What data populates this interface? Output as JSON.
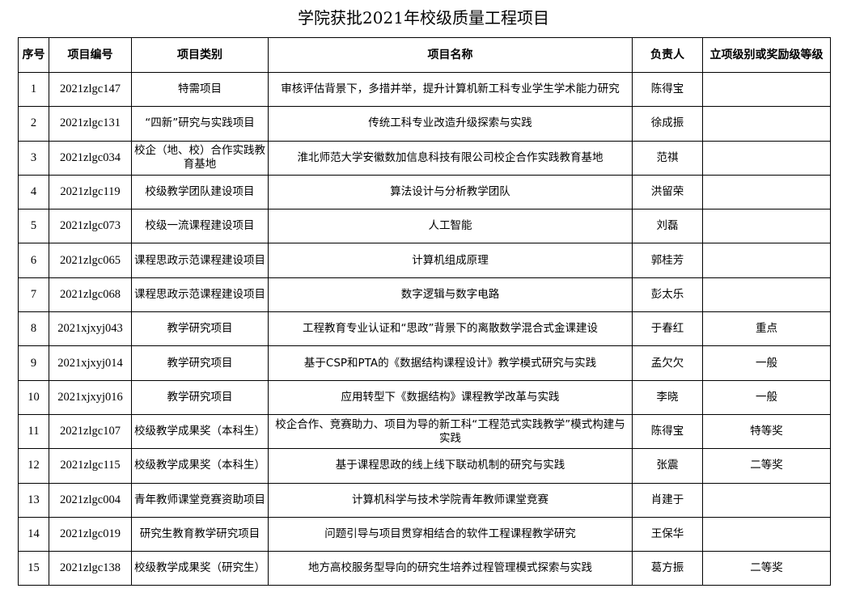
{
  "title": "学院获批2021年校级质量工程项目",
  "headers": [
    "序号",
    "项目编号",
    "项目类别",
    "项目名称",
    "负责人",
    "立项级别或奖励级等级"
  ],
  "rows": [
    [
      "1",
      "2021zlgc147",
      "特需项目",
      "审核评估背景下，多措并举，提升计算机新工科专业学生学术能力研究",
      "陈得宝",
      ""
    ],
    [
      "2",
      "2021zlgc131",
      "“四新”研究与实践项目",
      "传统工科专业改造升级探索与实践",
      "徐成振",
      ""
    ],
    [
      "3",
      "2021zlgc034",
      "校企（地、校）合作实践教育基地",
      "淮北师范大学安徽数加信息科技有限公司校企合作实践教育基地",
      "范祺",
      ""
    ],
    [
      "4",
      "2021zlgc119",
      "校级教学团队建设项目",
      "算法设计与分析教学团队",
      "洪留荣",
      ""
    ],
    [
      "5",
      "2021zlgc073",
      "校级一流课程建设项目",
      "人工智能",
      "刘磊",
      ""
    ],
    [
      "6",
      "2021zlgc065",
      "课程思政示范课程建设项目",
      "计算机组成原理",
      "郭桂芳",
      ""
    ],
    [
      "7",
      "2021zlgc068",
      "课程思政示范课程建设项目",
      "数字逻辑与数字电路",
      "彭太乐",
      ""
    ],
    [
      "8",
      "2021xjxyj043",
      "教学研究项目",
      "工程教育专业认证和“思政”背景下的离散数学混合式金课建设",
      "于春红",
      "重点"
    ],
    [
      "9",
      "2021xjxyj014",
      "教学研究项目",
      "基于CSP和PTA的《数据结构课程设计》教学模式研究与实践",
      "孟欠欠",
      "一般"
    ],
    [
      "10",
      "2021xjxyj016",
      "教学研究项目",
      "应用转型下《数据结构》课程教学改革与实践",
      "李晓",
      "一般"
    ],
    [
      "11",
      "2021zlgc107",
      "校级教学成果奖（本科生）",
      "校企合作、竞赛助力、项目为导的新工科“工程范式实践教学”模式构建与实践",
      "陈得宝",
      "特等奖"
    ],
    [
      "12",
      "2021zlgc115",
      "校级教学成果奖（本科生）",
      "基于课程思政的线上线下联动机制的研究与实践",
      "张震",
      "二等奖"
    ],
    [
      "13",
      "2021zlgc004",
      "青年教师课堂竞赛资助项目",
      "计算机科学与技术学院青年教师课堂竞赛",
      "肖建于",
      ""
    ],
    [
      "14",
      "2021zlgc019",
      "研究生教育教学研究项目",
      "问题引导与项目贯穿相结合的软件工程课程教学研究",
      "王保华",
      ""
    ],
    [
      "15",
      "2021zlgc138",
      "校级教学成果奖（研究生）",
      "地方高校服务型导向的研究生培养过程管理模式探索与实践",
      "葛方振",
      "二等奖"
    ]
  ]
}
